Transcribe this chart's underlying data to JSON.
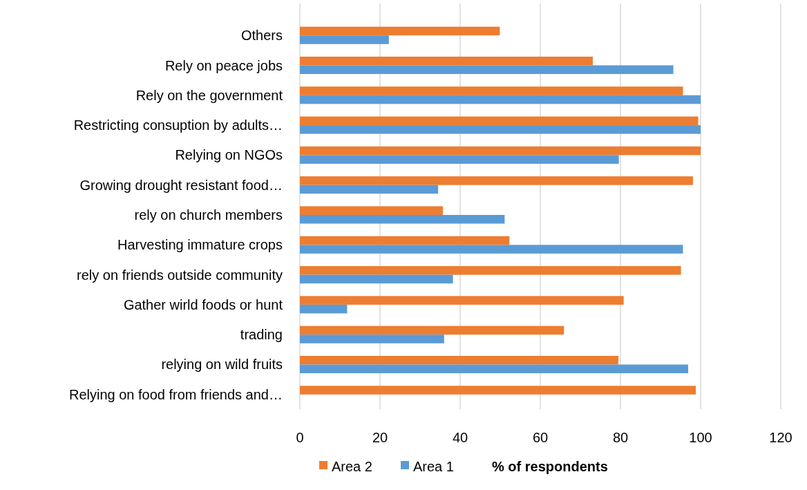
{
  "chart_data": {
    "type": "bar",
    "orientation": "horizontal",
    "categories": [
      "Others",
      "Rely on peace jobs",
      "Rely on the government",
      "Restricting consuption by adults…",
      "Relying on NGOs",
      "Growing drought resistant food…",
      "rely on church members",
      "Harvesting immature crops",
      "rely on friends outside community",
      "Gather wirld foods or hunt",
      "trading",
      "relying on wild fruits",
      "Relying on food from friends and…"
    ],
    "series": [
      {
        "name": "Area 2",
        "color": "#ed7d31",
        "values": [
          49.9,
          73.1,
          95.6,
          99.4,
          100,
          98.1,
          35.7,
          52.3,
          95.1,
          80.8,
          65.9,
          79.5,
          98.8
        ]
      },
      {
        "name": "Area 1",
        "color": "#5b9bd5",
        "values": [
          22.2,
          93.2,
          100,
          100,
          79.6,
          34.5,
          51.1,
          95.6,
          38.2,
          11.8,
          36,
          96.9,
          null
        ]
      }
    ],
    "xlabel": "% of respondents",
    "xlim": [
      0,
      120
    ],
    "xticks": [
      0,
      20,
      40,
      60,
      80,
      100,
      120
    ],
    "grid": "x",
    "legend": "bottom"
  }
}
